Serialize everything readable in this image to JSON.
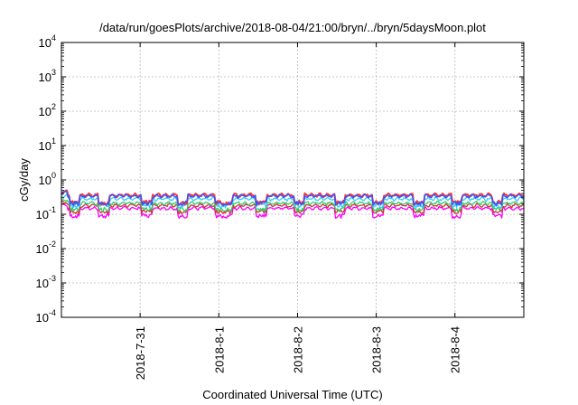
{
  "chart_data": {
    "type": "line",
    "title": "/data/run/goesPlots/archive/2018-08-04/21:00/bryn/../bryn/5daysMoon.plot",
    "xlabel": "Coordinated Universal Time (UTC)",
    "ylabel": "cGy/day",
    "yscale": "log",
    "ylim_exp": [
      -4,
      4
    ],
    "y_ticks": [
      {
        "base": "10",
        "exp": "-4",
        "value_exp": -4
      },
      {
        "base": "10",
        "exp": "-3",
        "value_exp": -3
      },
      {
        "base": "10",
        "exp": "-2",
        "value_exp": -2
      },
      {
        "base": "10",
        "exp": "-1",
        "value_exp": -1
      },
      {
        "base": "10",
        "exp": "0",
        "value_exp": 0
      },
      {
        "base": "10",
        "exp": "1",
        "value_exp": 1
      },
      {
        "base": "10",
        "exp": "2",
        "value_exp": 2
      },
      {
        "base": "10",
        "exp": "3",
        "value_exp": 3
      },
      {
        "base": "10",
        "exp": "4",
        "value_exp": 4
      }
    ],
    "xlim": [
      "2018-07-30T00:00",
      "2018-08-04T21:00"
    ],
    "x_ticks": [
      {
        "label": "2018-7-31",
        "date": "2018-07-31T00:00"
      },
      {
        "label": "2018-8-1",
        "date": "2018-08-01T00:00"
      },
      {
        "label": "2018-8-2",
        "date": "2018-08-02T00:00"
      },
      {
        "label": "2018-8-3",
        "date": "2018-08-03T00:00"
      },
      {
        "label": "2018-8-4",
        "date": "2018-08-04T00:00"
      }
    ],
    "grid": true,
    "legend": "none",
    "series": [
      {
        "color": "#ff00ff",
        "level": 0.15,
        "dip": 0.09,
        "width": 1.3
      },
      {
        "color": "#cc3333",
        "level": 0.18,
        "dip": 0.12,
        "width": 1.3
      },
      {
        "color": "#33cc66",
        "level": 0.21,
        "dip": 0.14,
        "width": 1.3
      },
      {
        "color": "#33ccff",
        "level": 0.28,
        "dip": 0.18,
        "width": 1.3
      },
      {
        "color": "#ff3333",
        "level": 0.36,
        "dip": 0.22,
        "width": 2.0
      },
      {
        "color": "#3355ff",
        "level": 0.34,
        "dip": 0.21,
        "width": 1.4
      }
    ],
    "dip_times": [
      "2018-07-30T04:00",
      "2018-07-30T13:00",
      "2018-07-31T02:00",
      "2018-07-31T13:00",
      "2018-08-01T00:30",
      "2018-08-01T02:30",
      "2018-08-01T13:00",
      "2018-08-02T00:30",
      "2018-08-02T13:00",
      "2018-08-03T00:30",
      "2018-08-03T13:00",
      "2018-08-04T00:30",
      "2018-08-04T13:00"
    ]
  }
}
